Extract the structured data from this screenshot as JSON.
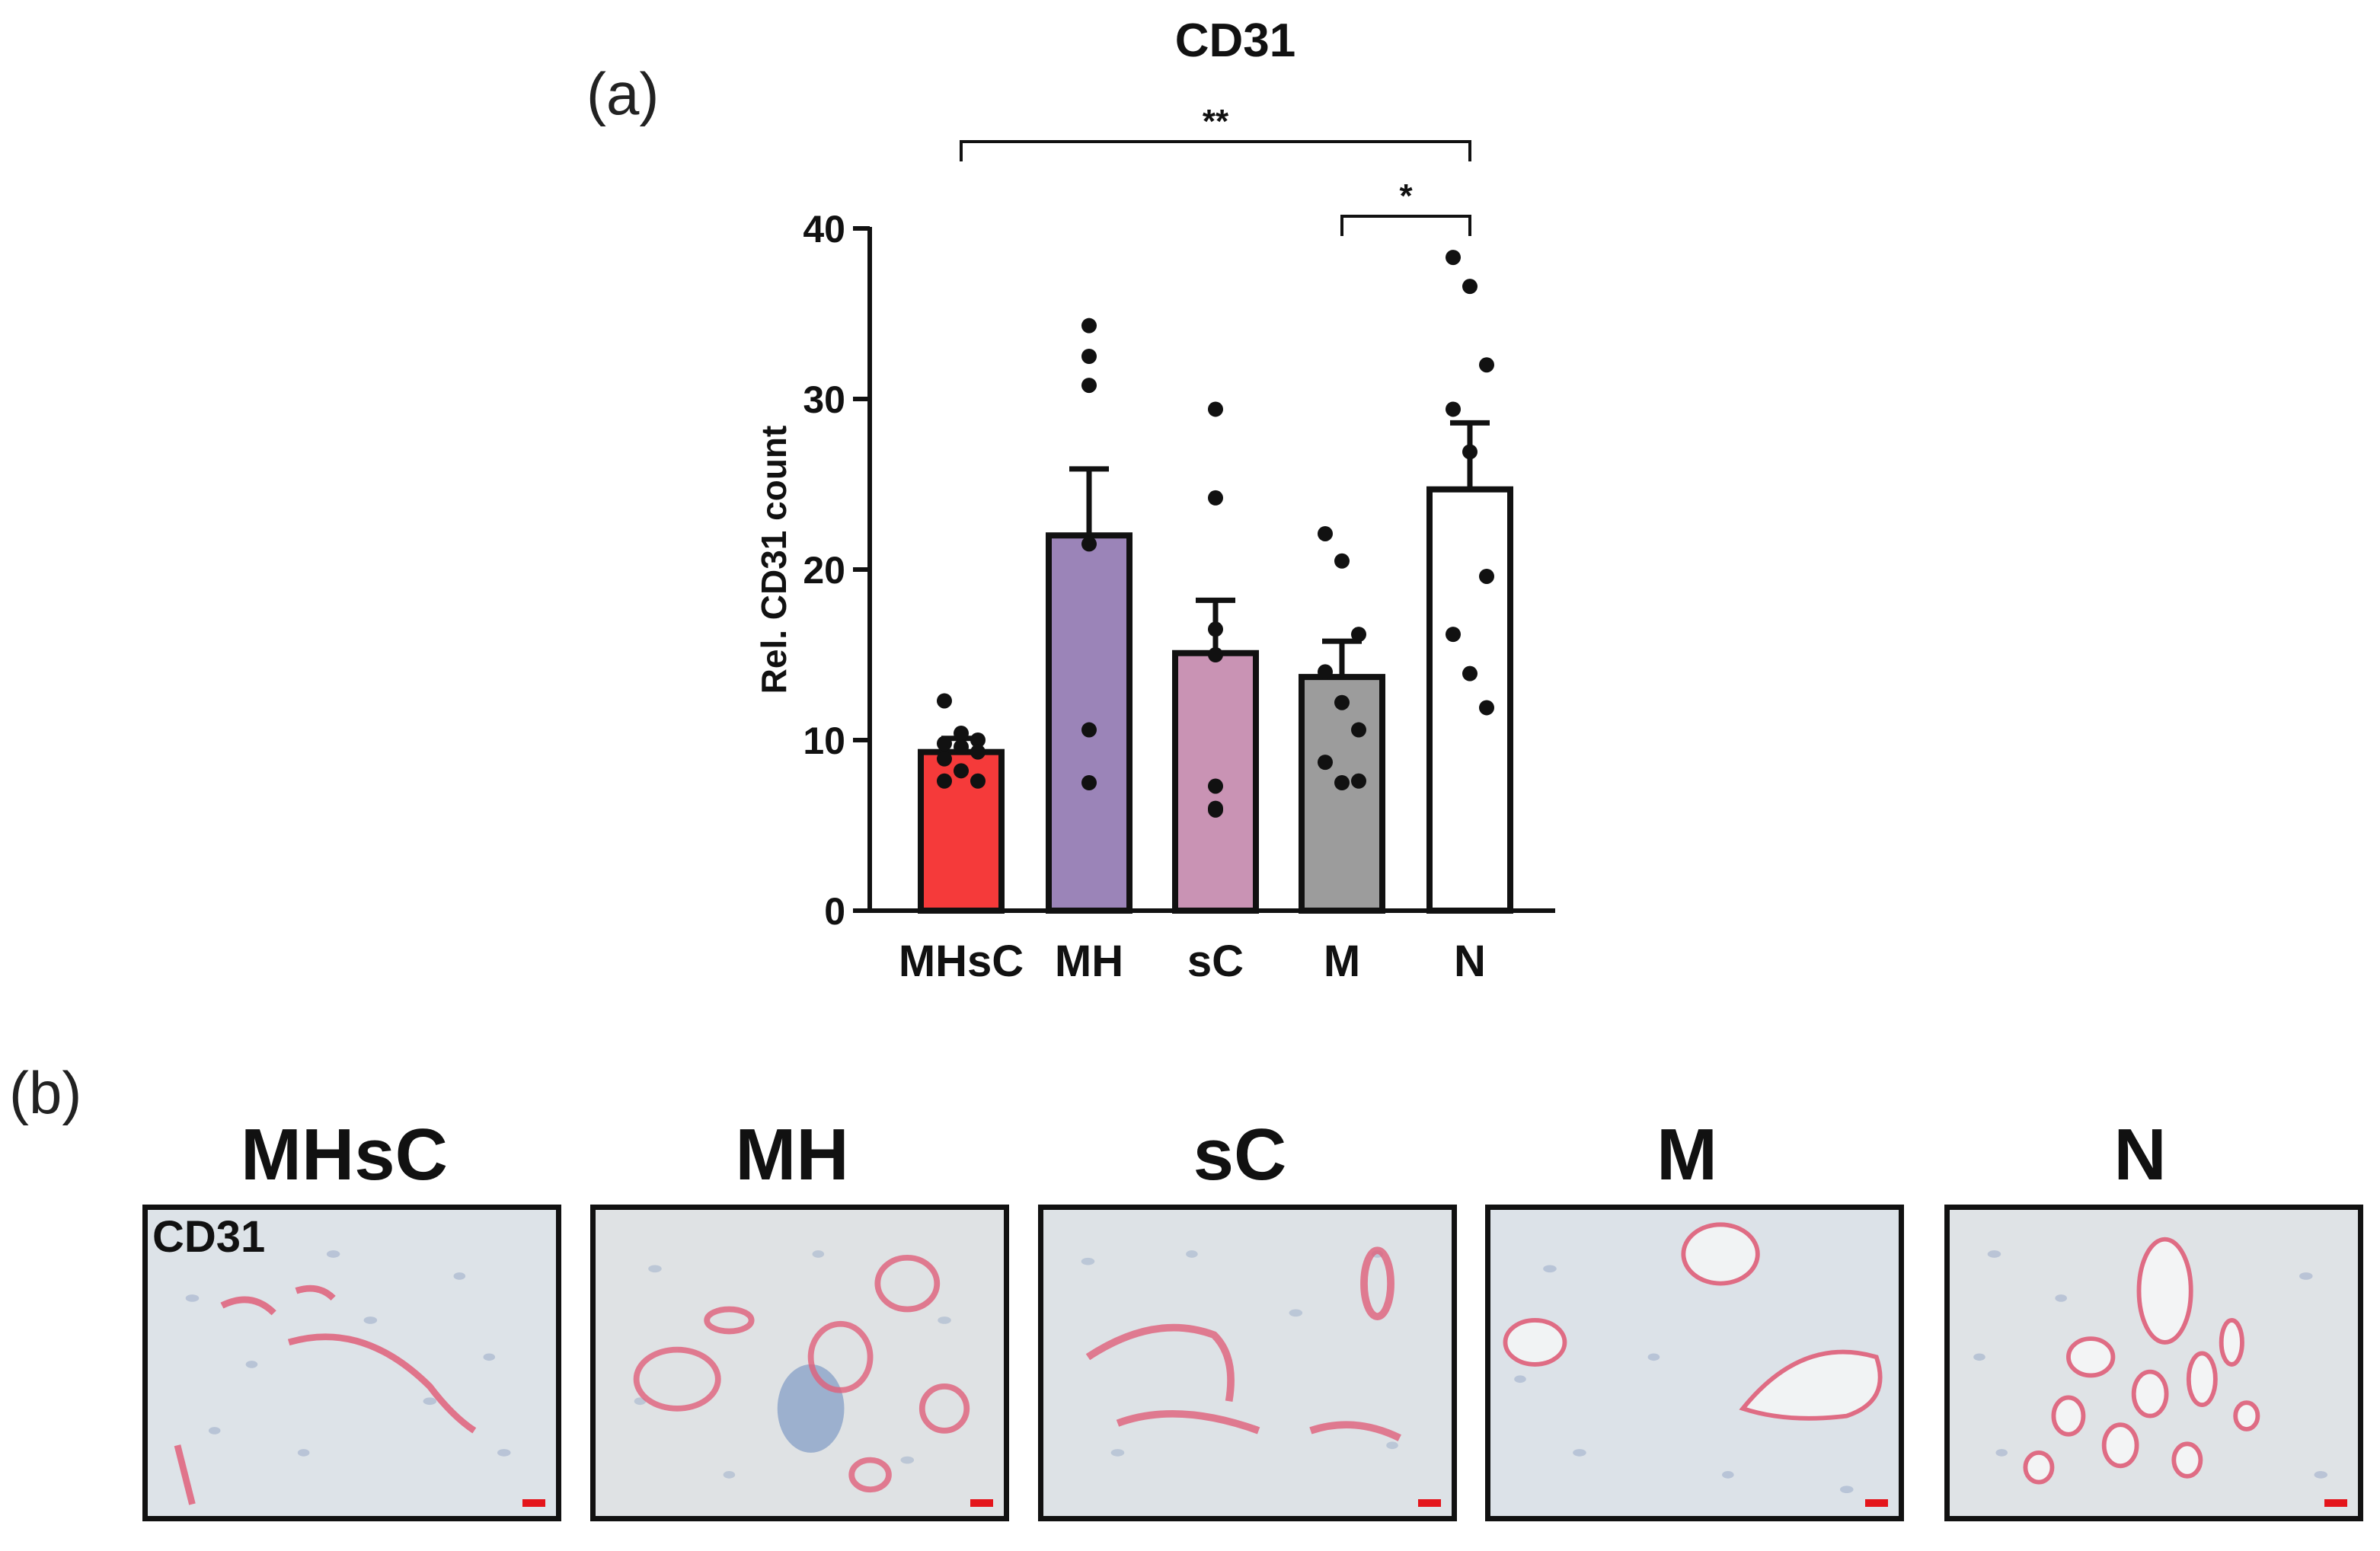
{
  "panels": {
    "a_label": "(a)",
    "b_label": "(b)"
  },
  "chart_data": {
    "type": "bar",
    "title": "CD31",
    "xlabel": "",
    "ylabel": "Rel. CD31 count",
    "ylim": [
      0,
      40
    ],
    "yticks": [
      0,
      10,
      20,
      30,
      40
    ],
    "categories": [
      "MHsC",
      "MH",
      "sC",
      "M",
      "N"
    ],
    "values": [
      9.3,
      22.0,
      15.1,
      13.7,
      24.7
    ],
    "sem": [
      0.8,
      3.9,
      3.1,
      2.1,
      3.9
    ],
    "bar_colors": [
      "#f53a3a",
      "#9b84b8",
      "#c993b4",
      "#9c9c9c",
      "#ffffff"
    ],
    "points": [
      [
        12.3,
        10.4,
        10.0,
        9.8,
        9.6,
        9.3,
        8.9,
        8.2,
        7.6,
        7.6
      ],
      [
        34.3,
        32.5,
        30.8,
        21.5,
        10.6,
        7.5
      ],
      [
        29.4,
        24.2,
        16.5,
        15.0,
        7.3,
        6.0,
        5.9
      ],
      [
        22.1,
        20.5,
        16.2,
        14.0,
        12.2,
        10.6,
        8.7,
        7.5,
        7.6
      ],
      [
        38.3,
        36.6,
        32.0,
        29.4,
        26.9,
        19.6,
        16.2,
        13.9,
        11.9
      ]
    ],
    "significance": [
      {
        "from": "MHsC",
        "to": "N",
        "label": "**"
      },
      {
        "from": "M",
        "to": "N",
        "label": "*"
      }
    ]
  },
  "micrographs": {
    "stain_label": "CD31",
    "titles": [
      "MHsC",
      "MH",
      "sC",
      "M",
      "N"
    ]
  },
  "colors": {
    "vessel_stain": "#e0607a",
    "tissue_background": "#dde3e8",
    "scale_bar": "#e4151b"
  }
}
